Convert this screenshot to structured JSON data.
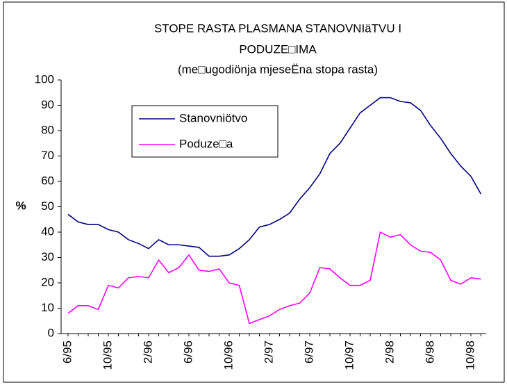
{
  "chart_data": {
    "type": "line",
    "title": [
      "STOPE RASTA PLASMANA STANOVNIäTVU I",
      "PODUZE□IMA",
      "(me□ugodiönja mjeseËna stopa rasta)"
    ],
    "ylabel": "%",
    "categories": [
      "6/95",
      null,
      null,
      null,
      "10/95",
      null,
      null,
      null,
      "2/96",
      null,
      null,
      null,
      "6/96",
      null,
      null,
      null,
      "10/96",
      null,
      null,
      null,
      "2/97",
      null,
      null,
      null,
      "6/97",
      null,
      null,
      null,
      "10/97",
      null,
      null,
      null,
      "2/98",
      null,
      null,
      null,
      "6/98",
      null,
      null,
      null,
      "10/98",
      null
    ],
    "series": [
      {
        "name": "Stanovniötvo",
        "color": "#000080",
        "values": [
          47,
          44,
          43,
          43,
          41,
          40,
          37,
          35.5,
          33.5,
          37,
          35,
          35,
          34.5,
          34,
          30.5,
          30.5,
          31,
          33.5,
          37,
          42,
          43,
          45,
          47.5,
          53,
          57.5,
          63,
          71,
          75,
          81,
          87,
          90,
          93,
          93,
          91.5,
          91,
          88,
          82,
          77,
          71,
          66,
          62,
          55
        ]
      },
      {
        "name": "Poduze□a",
        "color": "#ff00ff",
        "values": [
          8,
          11,
          11,
          9.5,
          19,
          18,
          22,
          22.5,
          22,
          29,
          24,
          26,
          31,
          25,
          24.5,
          25.5,
          20,
          19,
          4,
          5.5,
          7,
          9.5,
          11,
          12,
          16,
          26,
          25.5,
          22,
          19,
          19,
          21,
          40,
          38,
          39,
          35,
          32.5,
          32,
          29,
          21,
          19.5,
          22,
          21.5
        ]
      }
    ],
    "ylim": [
      0,
      100
    ],
    "yticks": [
      0,
      10,
      20,
      30,
      40,
      50,
      60,
      70,
      80,
      90,
      100
    ]
  }
}
